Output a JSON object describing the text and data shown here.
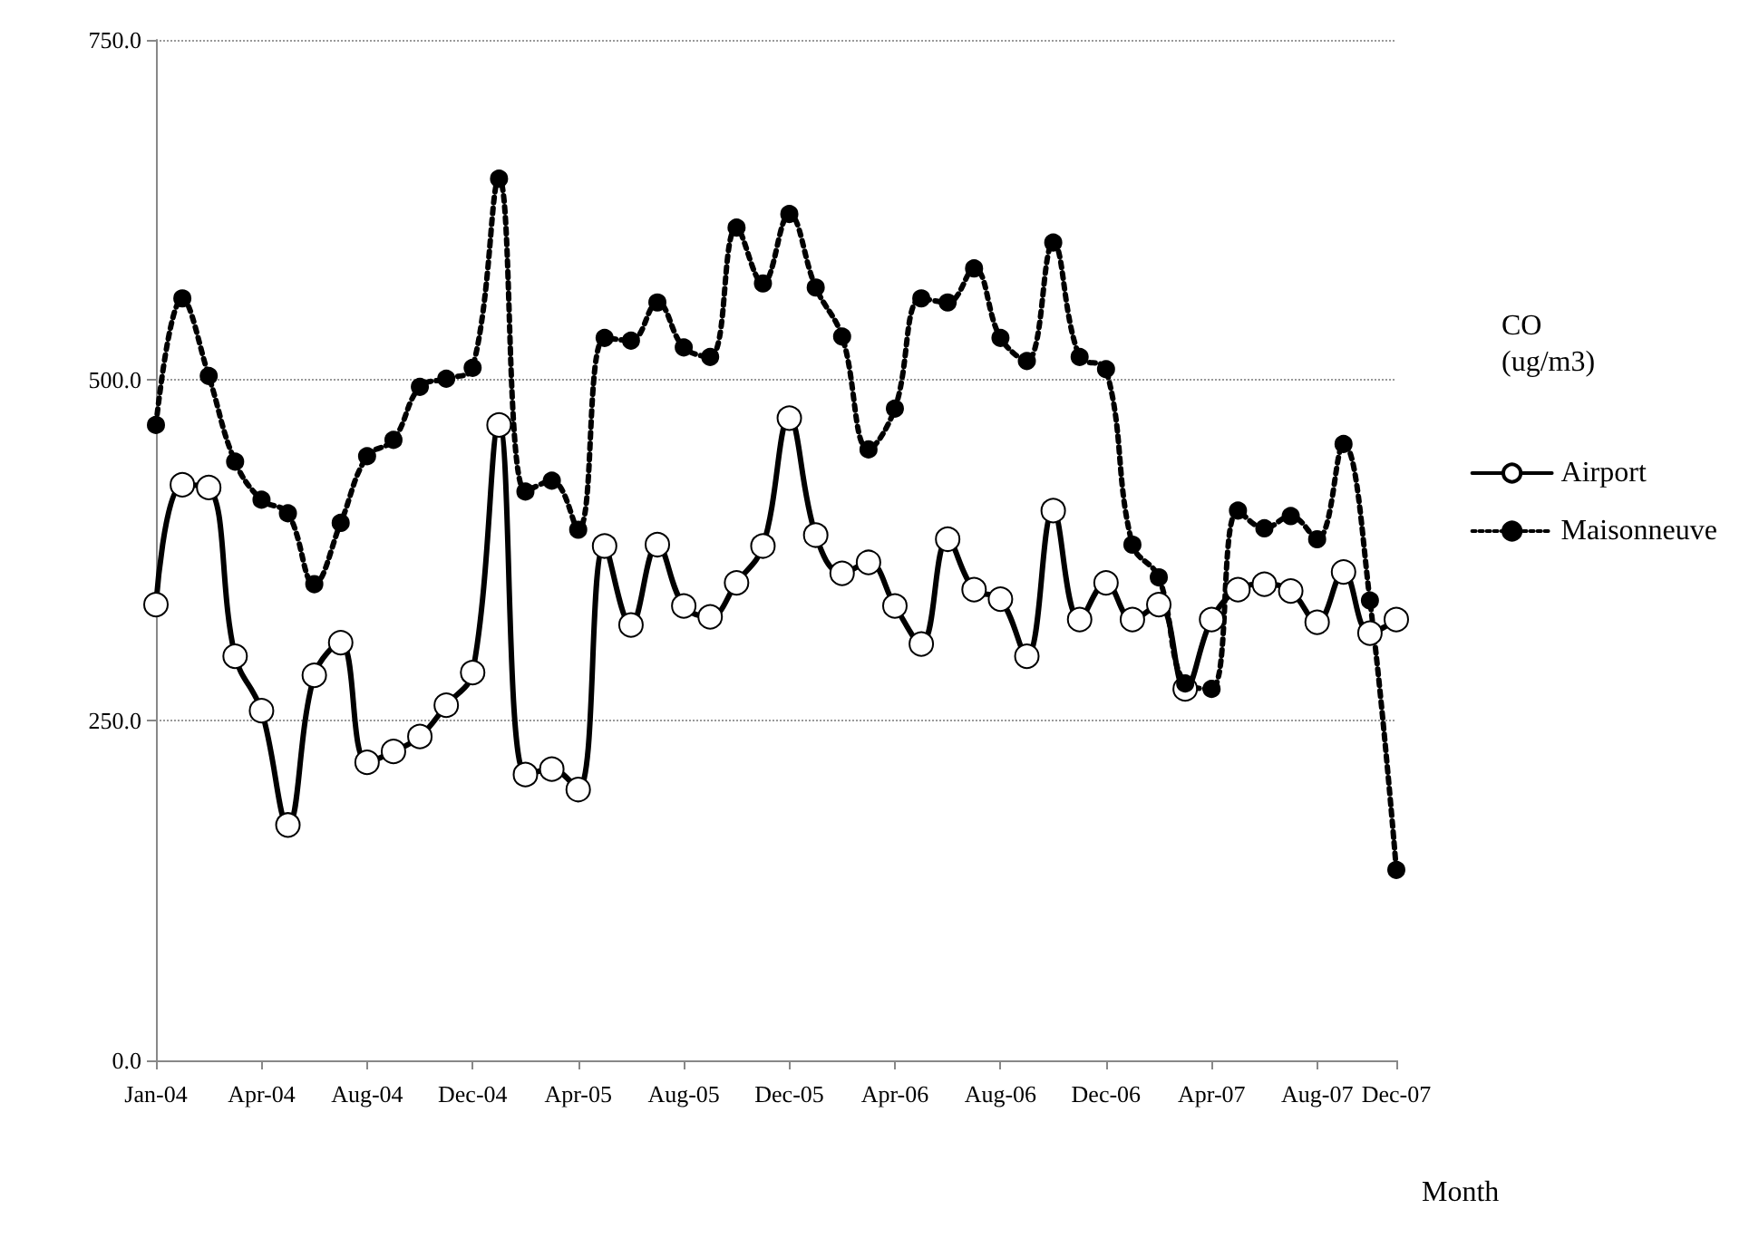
{
  "chart_data": {
    "type": "line",
    "xlabel": "Month",
    "legend_title": "CO\n(ug/m3)",
    "categories": [
      "Jan-04",
      null,
      null,
      null,
      "Apr-04",
      null,
      null,
      null,
      "Aug-04",
      null,
      null,
      null,
      "Dec-04",
      null,
      null,
      null,
      "Apr-05",
      null,
      null,
      null,
      "Aug-05",
      null,
      null,
      null,
      "Dec-05",
      null,
      null,
      null,
      "Apr-06",
      null,
      null,
      null,
      "Aug-06",
      null,
      null,
      null,
      "Dec-06",
      null,
      null,
      null,
      "Apr-07",
      null,
      null,
      null,
      "Aug-07",
      null,
      null,
      "Dec-07"
    ],
    "series": [
      {
        "name": "Airport",
        "color": "#000000",
        "line_style": "solid",
        "marker": "circle",
        "values": [
          335,
          423,
          421,
          297,
          257,
          173,
          283,
          307,
          219,
          227,
          238,
          261,
          285,
          467,
          210,
          214,
          199,
          378,
          320,
          379,
          334,
          326,
          351,
          378,
          472,
          386,
          358,
          366,
          334,
          306,
          383,
          346,
          339,
          297,
          404,
          324,
          351,
          324,
          335,
          273,
          324,
          346,
          350,
          345,
          322,
          359,
          314,
          324
        ]
      },
      {
        "name": "Maisonneuve",
        "color": "#000000",
        "line_style": "dotted",
        "marker": "circle",
        "values": [
          467,
          560,
          503,
          440,
          412,
          402,
          350,
          395,
          444,
          456,
          495,
          501,
          509,
          648,
          418,
          426,
          390,
          531,
          529,
          557,
          524,
          517,
          612,
          571,
          622,
          568,
          532,
          449,
          479,
          560,
          557,
          582,
          531,
          514,
          601,
          517,
          508,
          379,
          355,
          277,
          273,
          404,
          391,
          400,
          383,
          453,
          338,
          140
        ]
      }
    ],
    "ylim": [
      0,
      750
    ],
    "yticks": [
      {
        "value": 0,
        "label": "0.0"
      },
      {
        "value": 250,
        "label": "250.0"
      },
      {
        "value": 500,
        "label": "500.0"
      },
      {
        "value": 750,
        "label": "750.0"
      }
    ],
    "grid": "y",
    "legend": "right"
  }
}
